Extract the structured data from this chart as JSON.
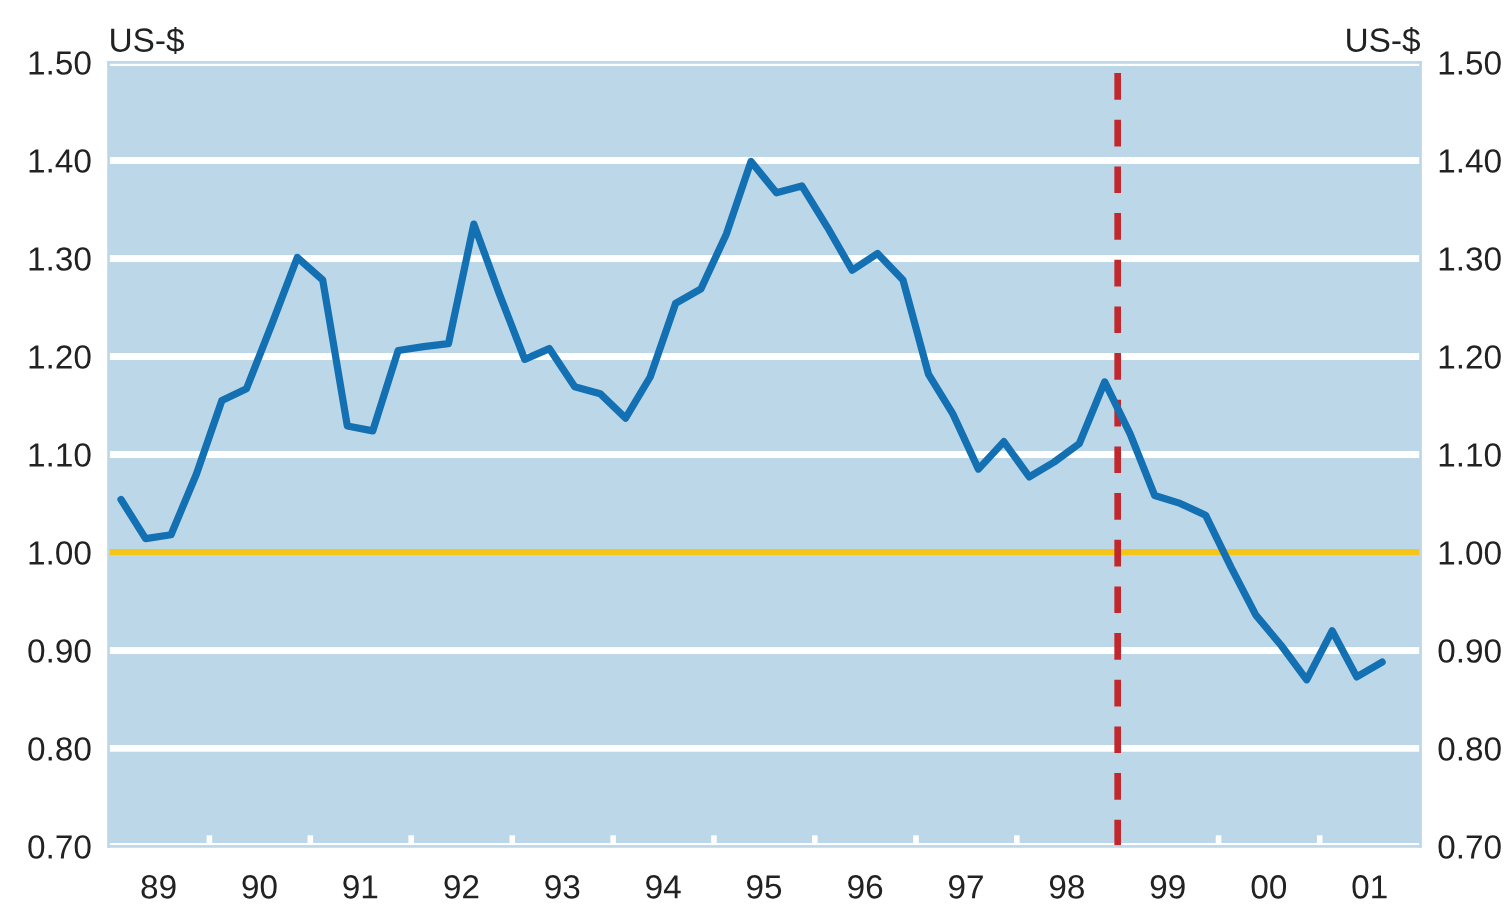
{
  "chart_data": {
    "type": "line",
    "ylabel": "US-$",
    "y2label": "US-$",
    "x": [
      "1989-02-15",
      "1989-05-15",
      "1989-08-15",
      "1989-11-15",
      "1990-02-15",
      "1990-05-15",
      "1990-08-15",
      "1990-11-15",
      "1991-02-15",
      "1991-05-15",
      "1991-08-15",
      "1991-11-15",
      "1992-02-15",
      "1992-05-15",
      "1992-08-15",
      "1992-11-15",
      "1993-02-15",
      "1993-05-15",
      "1993-08-15",
      "1993-11-15",
      "1994-02-15",
      "1994-05-15",
      "1994-08-15",
      "1994-11-15",
      "1995-02-15",
      "1995-05-15",
      "1995-08-15",
      "1995-11-15",
      "1996-02-15",
      "1996-05-15",
      "1996-08-15",
      "1996-11-15",
      "1997-02-15",
      "1997-05-15",
      "1997-08-15",
      "1997-11-15",
      "1998-02-15",
      "1998-05-15",
      "1998-08-15",
      "1998-11-15",
      "1999-02-15",
      "1999-05-15",
      "1999-08-15",
      "1999-11-15",
      "2000-02-15",
      "2000-05-15",
      "2000-08-15",
      "2000-11-15",
      "2001-02-15",
      "2001-05-15",
      "2001-08-15"
    ],
    "series": [
      {
        "color": "#1370b3",
        "values": [
          1.054,
          1.014,
          1.018,
          1.08,
          1.155,
          1.167,
          1.233,
          1.301,
          1.278,
          1.129,
          1.124,
          1.206,
          1.21,
          1.213,
          1.335,
          1.264,
          1.197,
          1.208,
          1.169,
          1.162,
          1.137,
          1.179,
          1.254,
          1.269,
          1.325,
          1.399,
          1.367,
          1.374,
          1.332,
          1.288,
          1.305,
          1.278,
          1.182,
          1.141,
          1.085,
          1.113,
          1.077,
          1.092,
          1.111,
          1.174,
          1.121,
          1.058,
          1.05,
          1.038,
          0.985,
          0.936,
          0.905,
          0.87,
          0.92,
          0.873,
          0.888
        ]
      }
    ],
    "xlim": [
      "1989-01-01",
      "2002-01-01"
    ],
    "xticks": [
      {
        "value": "1989-07-01",
        "label": "89"
      },
      {
        "value": "1990-01-01",
        "label": null
      },
      {
        "value": "1990-07-01",
        "label": "90"
      },
      {
        "value": "1991-01-01",
        "label": null
      },
      {
        "value": "1991-07-01",
        "label": "91"
      },
      {
        "value": "1992-01-01",
        "label": null
      },
      {
        "value": "1992-07-01",
        "label": "92"
      },
      {
        "value": "1993-01-01",
        "label": null
      },
      {
        "value": "1993-07-01",
        "label": "93"
      },
      {
        "value": "1994-01-01",
        "label": null
      },
      {
        "value": "1994-07-01",
        "label": "94"
      },
      {
        "value": "1995-01-01",
        "label": null
      },
      {
        "value": "1995-07-01",
        "label": "95"
      },
      {
        "value": "1996-01-01",
        "label": null
      },
      {
        "value": "1996-07-01",
        "label": "96"
      },
      {
        "value": "1997-01-01",
        "label": null
      },
      {
        "value": "1997-07-01",
        "label": "97"
      },
      {
        "value": "1998-01-01",
        "label": null
      },
      {
        "value": "1998-07-01",
        "label": "98"
      },
      {
        "value": "1999-01-01",
        "label": null
      },
      {
        "value": "1999-07-01",
        "label": "99"
      },
      {
        "value": "2000-01-01",
        "label": null
      },
      {
        "value": "2000-07-01",
        "label": "00"
      },
      {
        "value": "2001-01-01",
        "label": null
      },
      {
        "value": "2001-07-01",
        "label": "01"
      }
    ],
    "ylim": [
      0.7,
      1.5
    ],
    "yticks": [
      {
        "value": 0.7,
        "label": "0.70"
      },
      {
        "value": 0.8,
        "label": "0.80"
      },
      {
        "value": 0.9,
        "label": "0.90"
      },
      {
        "value": 1.0,
        "label": "1.00"
      },
      {
        "value": 1.1,
        "label": "1.10"
      },
      {
        "value": 1.2,
        "label": "1.20"
      },
      {
        "value": 1.3,
        "label": "1.30"
      },
      {
        "value": 1.4,
        "label": "1.40"
      },
      {
        "value": 1.5,
        "label": "1.50"
      }
    ],
    "y2lim": [
      0.7,
      1.5
    ],
    "y2ticks": [
      {
        "value": 0.7,
        "label": "0.70"
      },
      {
        "value": 0.8,
        "label": "0.80"
      },
      {
        "value": 0.9,
        "label": "0.90"
      },
      {
        "value": 1.0,
        "label": "1.00"
      },
      {
        "value": 1.1,
        "label": "1.10"
      },
      {
        "value": 1.2,
        "label": "1.20"
      },
      {
        "value": 1.3,
        "label": "1.30"
      },
      {
        "value": 1.4,
        "label": "1.40"
      },
      {
        "value": 1.5,
        "label": "1.50"
      }
    ],
    "grid": "y",
    "ref_lines": [
      {
        "axis": "y",
        "value": 1.0,
        "color": "#f5c518",
        "line_style": "solid"
      },
      {
        "axis": "x",
        "value": "1999-01-01",
        "color": "#c0282d",
        "line_style": "dashed"
      }
    ]
  }
}
